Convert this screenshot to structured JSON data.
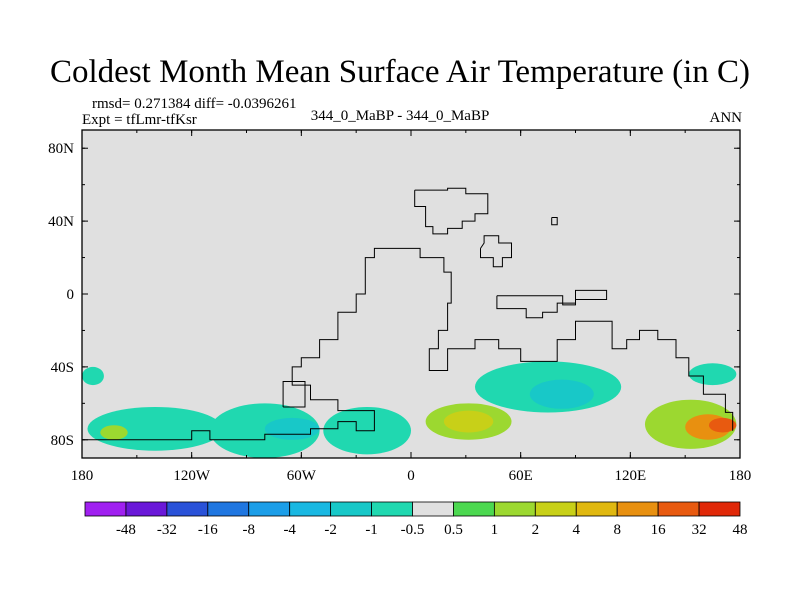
{
  "chart_data": {
    "type": "heatmap",
    "title": "Coldest Month Mean Surface Air Temperature (in C)",
    "stats_text": "rmsd= 0.271384  diff= -0.0396261",
    "experiment_text": "Expt = tfLmr-tfKsr",
    "center_text": "344_0_MaBP - 344_0_MaBP",
    "season": "ANN",
    "x_axis": {
      "range": [
        -180,
        180
      ],
      "ticks": [
        {
          "value": -180,
          "label": "180"
        },
        {
          "value": -120,
          "label": "120W"
        },
        {
          "value": -60,
          "label": "60W"
        },
        {
          "value": 0,
          "label": "0"
        },
        {
          "value": 60,
          "label": "60E"
        },
        {
          "value": 120,
          "label": "120E"
        },
        {
          "value": 180,
          "label": "180"
        }
      ]
    },
    "y_axis": {
      "range": [
        -90,
        90
      ],
      "ticks": [
        {
          "value": 80,
          "label": "80N"
        },
        {
          "value": 40,
          "label": "40N"
        },
        {
          "value": 0,
          "label": "0"
        },
        {
          "value": -40,
          "label": "40S"
        },
        {
          "value": -80,
          "label": "80S"
        }
      ]
    },
    "colorbar": {
      "labels": [
        "-48",
        "-32",
        "-16",
        "-8",
        "-4",
        "-2",
        "-1",
        "-0.5",
        "0.5",
        "1",
        "2",
        "4",
        "8",
        "16",
        "32",
        "48"
      ],
      "colors": [
        "#a020f0",
        "#6a18d8",
        "#2a52d8",
        "#1f76e0",
        "#1c9ee8",
        "#19b8e2",
        "#18c8c8",
        "#20d8b0",
        "#e0e0e0",
        "#4cd850",
        "#9cd830",
        "#c8d018",
        "#e0b810",
        "#e89010",
        "#e85a10",
        "#e02808"
      ]
    },
    "background_color": "#e0e0e0",
    "anomaly_regions": [
      {
        "name": "east-pacific-midlat",
        "lon": [
          -180,
          -168
        ],
        "lat": [
          -50,
          -40
        ],
        "value": -1
      },
      {
        "name": "pacific-southern",
        "lon": [
          -177,
          -103
        ],
        "lat": [
          -86,
          -62
        ],
        "value": -1
      },
      {
        "name": "pacific-southern-green",
        "lon": [
          -170,
          -155
        ],
        "lat": [
          -80,
          -72
        ],
        "value": 1
      },
      {
        "name": "south-america-southern",
        "lon": [
          -110,
          -50
        ],
        "lat": [
          -90,
          -60
        ],
        "value": -1
      },
      {
        "name": "south-atlantic",
        "lon": [
          -48,
          0
        ],
        "lat": [
          -88,
          -62
        ],
        "value": -1
      },
      {
        "name": "south-atlantic-inner",
        "lon": [
          -80,
          -50
        ],
        "lat": [
          -80,
          -68
        ],
        "value": -2
      },
      {
        "name": "south-africa-green",
        "lon": [
          8,
          55
        ],
        "lat": [
          -80,
          -60
        ],
        "value": 1
      },
      {
        "name": "south-africa-core",
        "lon": [
          18,
          45
        ],
        "lat": [
          -76,
          -64
        ],
        "value": 2
      },
      {
        "name": "indian-ocean",
        "lon": [
          35,
          115
        ],
        "lat": [
          -65,
          -37
        ],
        "value": -1
      },
      {
        "name": "indian-ocean-inner",
        "lon": [
          65,
          100
        ],
        "lat": [
          -63,
          -47
        ],
        "value": -2
      },
      {
        "name": "west-pacific-green",
        "lon": [
          128,
          178
        ],
        "lat": [
          -85,
          -58
        ],
        "value": 1
      },
      {
        "name": "west-pacific-orange",
        "lon": [
          150,
          175
        ],
        "lat": [
          -80,
          -66
        ],
        "value": 8
      },
      {
        "name": "west-pacific-red",
        "lon": [
          163,
          178
        ],
        "lat": [
          -76,
          -68
        ],
        "value": 16
      },
      {
        "name": "west-pacific-midlat",
        "lon": [
          152,
          178
        ],
        "lat": [
          -50,
          -38
        ],
        "value": -1
      }
    ],
    "continent_outlines": [
      {
        "name": "pangea-west",
        "points": [
          [
            -180,
            -80
          ],
          [
            -120,
            -80
          ],
          [
            -120,
            -75
          ],
          [
            -110,
            -75
          ],
          [
            -110,
            -80
          ],
          [
            -80,
            -80
          ],
          [
            -80,
            -77
          ],
          [
            -55,
            -77
          ],
          [
            -55,
            -74
          ],
          [
            -40,
            -74
          ],
          [
            -40,
            -70
          ],
          [
            -30,
            -70
          ],
          [
            -30,
            -75
          ],
          [
            -20,
            -75
          ],
          [
            -20,
            -64
          ],
          [
            -40,
            -64
          ],
          [
            -40,
            -58
          ],
          [
            -55,
            -58
          ],
          [
            -55,
            -50
          ],
          [
            -65,
            -50
          ],
          [
            -65,
            -40
          ],
          [
            -60,
            -40
          ],
          [
            -60,
            -35
          ],
          [
            -50,
            -35
          ],
          [
            -50,
            -25
          ],
          [
            -40,
            -25
          ],
          [
            -40,
            -10
          ],
          [
            -30,
            -10
          ],
          [
            -30,
            0
          ],
          [
            -25,
            0
          ],
          [
            -25,
            20
          ],
          [
            -20,
            20
          ],
          [
            -20,
            25
          ],
          [
            5,
            25
          ],
          [
            5,
            20
          ],
          [
            18,
            20
          ],
          [
            18,
            12
          ],
          [
            22,
            12
          ],
          [
            22,
            -5
          ],
          [
            20,
            -5
          ],
          [
            20,
            -20
          ],
          [
            15,
            -20
          ],
          [
            15,
            -30
          ],
          [
            10,
            -30
          ],
          [
            10,
            -42
          ],
          [
            20,
            -42
          ],
          [
            20,
            -30
          ],
          [
            35,
            -30
          ],
          [
            35,
            -25
          ],
          [
            48,
            -25
          ],
          [
            48,
            -30
          ],
          [
            60,
            -30
          ],
          [
            60,
            -37
          ],
          [
            80,
            -37
          ],
          [
            80,
            -25
          ],
          [
            90,
            -25
          ],
          [
            90,
            -15
          ],
          [
            110,
            -15
          ],
          [
            110,
            -30
          ],
          [
            118,
            -30
          ],
          [
            118,
            -25
          ],
          [
            125,
            -25
          ],
          [
            125,
            -20
          ],
          [
            135,
            -20
          ],
          [
            135,
            -25
          ],
          [
            145,
            -25
          ],
          [
            145,
            -35
          ],
          [
            152,
            -35
          ],
          [
            152,
            -45
          ],
          [
            160,
            -45
          ],
          [
            160,
            -55
          ],
          [
            172,
            -55
          ],
          [
            172,
            -65
          ],
          [
            176,
            -65
          ],
          [
            176,
            -75
          ]
        ]
      },
      {
        "name": "south-america-tip",
        "points": [
          [
            -70,
            -62
          ],
          [
            -58,
            -62
          ],
          [
            -58,
            -48
          ],
          [
            -70,
            -48
          ],
          [
            -70,
            -62
          ]
        ]
      },
      {
        "name": "north-landmass",
        "points": [
          [
            2,
            57
          ],
          [
            2,
            48
          ],
          [
            8,
            48
          ],
          [
            8,
            37
          ],
          [
            12,
            37
          ],
          [
            12,
            33
          ],
          [
            20,
            33
          ],
          [
            20,
            36
          ],
          [
            28,
            36
          ],
          [
            28,
            40
          ],
          [
            35,
            40
          ],
          [
            35,
            44
          ],
          [
            42,
            44
          ],
          [
            42,
            55
          ],
          [
            30,
            55
          ],
          [
            30,
            58
          ],
          [
            20,
            58
          ],
          [
            20,
            57
          ],
          [
            2,
            57
          ]
        ]
      },
      {
        "name": "east-arc",
        "points": [
          [
            38,
            25
          ],
          [
            38,
            20
          ],
          [
            45,
            20
          ],
          [
            45,
            15
          ],
          [
            50,
            15
          ],
          [
            50,
            20
          ],
          [
            55,
            20
          ],
          [
            55,
            28
          ],
          [
            48,
            28
          ],
          [
            48,
            32
          ],
          [
            40,
            32
          ],
          [
            40,
            28
          ],
          [
            38,
            25
          ]
        ]
      },
      {
        "name": "east-strip",
        "points": [
          [
            47,
            -1
          ],
          [
            47,
            -8
          ],
          [
            63,
            -8
          ],
          [
            63,
            -13
          ],
          [
            72,
            -13
          ],
          [
            72,
            -10
          ],
          [
            80,
            -10
          ],
          [
            80,
            -5
          ],
          [
            90,
            -5
          ],
          [
            90,
            2
          ],
          [
            107,
            2
          ],
          [
            107,
            -3
          ],
          [
            90,
            -3
          ],
          [
            90,
            -6
          ],
          [
            83,
            -6
          ],
          [
            83,
            -1
          ],
          [
            47,
            -1
          ]
        ]
      },
      {
        "name": "small-island-north",
        "points": [
          [
            77,
            42
          ],
          [
            77,
            38
          ],
          [
            80,
            38
          ],
          [
            80,
            42
          ],
          [
            77,
            42
          ]
        ]
      }
    ]
  }
}
